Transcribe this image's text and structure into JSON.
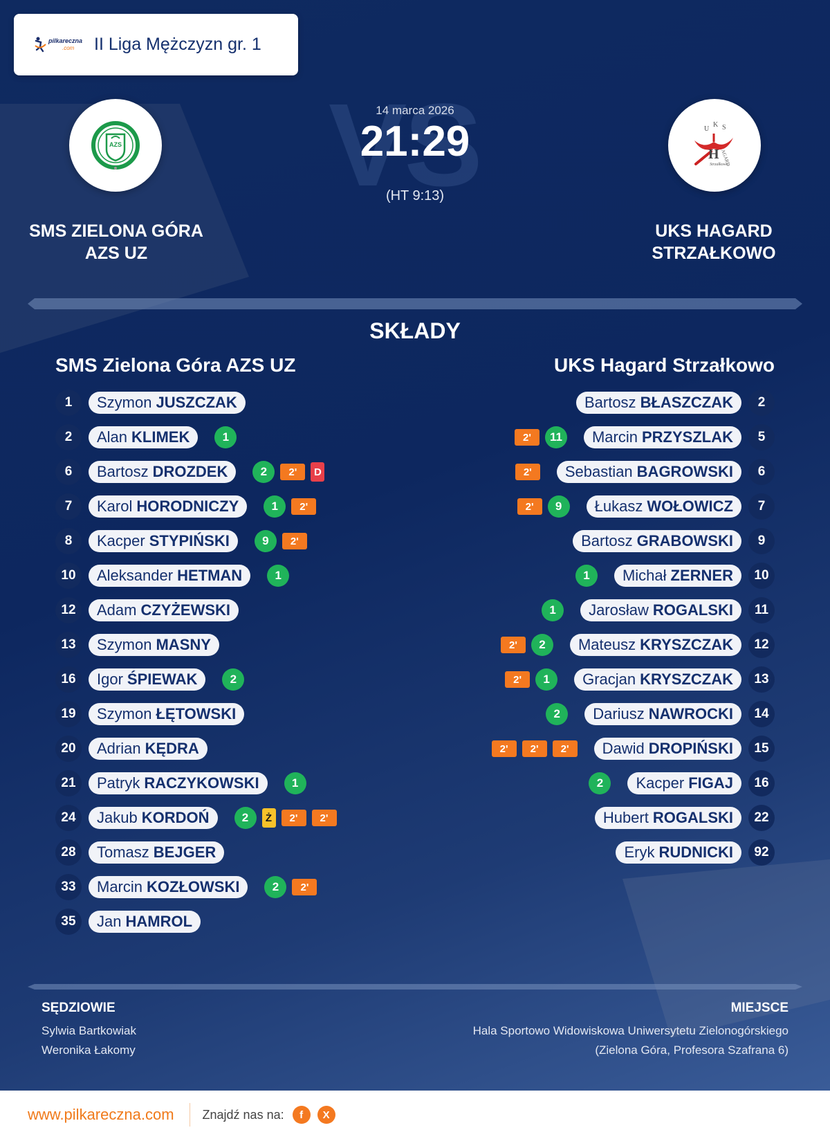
{
  "header": {
    "league_logo_text": "pilkareczna",
    "league_logo_suffix": ".com",
    "league_name": "II Liga Mężczyzn gr. 1"
  },
  "match": {
    "date": "14 marca 2026",
    "score": "21:29",
    "halftime": "(HT 9:13)",
    "vs_watermark": "VS"
  },
  "home_team": {
    "title_line1": "SMS ZIELONA GÓRA",
    "title_line2": "AZS UZ",
    "roster_name": "SMS Zielona Góra AZS UZ",
    "logo_text": "AZS"
  },
  "away_team": {
    "title_line1": "UKS HAGARD",
    "title_line2": "STRZAŁKOWO",
    "roster_name": "UKS Hagard Strzałkowo",
    "logo_text": "UKS H"
  },
  "section_title": "SKŁADY",
  "home_players": [
    {
      "number": "1",
      "first": "Szymon",
      "last": "JUSZCZAK",
      "goals": null,
      "penalties": [],
      "yellow": false,
      "red": false
    },
    {
      "number": "2",
      "first": "Alan",
      "last": "KLIMEK",
      "goals": "1",
      "penalties": [],
      "yellow": false,
      "red": false
    },
    {
      "number": "6",
      "first": "Bartosz",
      "last": "DROZDEK",
      "goals": "2",
      "penalties": [
        "2'"
      ],
      "yellow": false,
      "red": true
    },
    {
      "number": "7",
      "first": "Karol",
      "last": "HORODNICZY",
      "goals": "1",
      "penalties": [
        "2'"
      ],
      "yellow": false,
      "red": false
    },
    {
      "number": "8",
      "first": "Kacper",
      "last": "STYPIŃSKI",
      "goals": "9",
      "penalties": [
        "2'"
      ],
      "yellow": false,
      "red": false
    },
    {
      "number": "10",
      "first": "Aleksander",
      "last": "HETMAN",
      "goals": "1",
      "penalties": [],
      "yellow": false,
      "red": false
    },
    {
      "number": "12",
      "first": "Adam",
      "last": "CZYŻEWSKI",
      "goals": null,
      "penalties": [],
      "yellow": false,
      "red": false
    },
    {
      "number": "13",
      "first": "Szymon",
      "last": "MASNY",
      "goals": null,
      "penalties": [],
      "yellow": false,
      "red": false
    },
    {
      "number": "16",
      "first": "Igor",
      "last": "ŚPIEWAK",
      "goals": "2",
      "penalties": [],
      "yellow": false,
      "red": false
    },
    {
      "number": "19",
      "first": "Szymon",
      "last": "ŁĘTOWSKI",
      "goals": null,
      "penalties": [],
      "yellow": false,
      "red": false
    },
    {
      "number": "20",
      "first": "Adrian",
      "last": "KĘDRA",
      "goals": null,
      "penalties": [],
      "yellow": false,
      "red": false
    },
    {
      "number": "21",
      "first": "Patryk",
      "last": "RACZYKOWSKI",
      "goals": "1",
      "penalties": [],
      "yellow": false,
      "red": false
    },
    {
      "number": "24",
      "first": "Jakub",
      "last": "KORDOŃ",
      "goals": "2",
      "penalties": [
        "2'",
        "2'"
      ],
      "yellow": true,
      "red": false
    },
    {
      "number": "28",
      "first": "Tomasz",
      "last": "BEJGER",
      "goals": null,
      "penalties": [],
      "yellow": false,
      "red": false
    },
    {
      "number": "33",
      "first": "Marcin",
      "last": "KOZŁOWSKI",
      "goals": "2",
      "penalties": [
        "2'"
      ],
      "yellow": false,
      "red": false
    },
    {
      "number": "35",
      "first": "Jan",
      "last": "HAMROL",
      "goals": null,
      "penalties": [],
      "yellow": false,
      "red": false
    }
  ],
  "away_players": [
    {
      "number": "2",
      "first": "Bartosz",
      "last": "BŁASZCZAK",
      "goals": null,
      "penalties": [],
      "yellow": false,
      "red": false
    },
    {
      "number": "5",
      "first": "Marcin",
      "last": "PRZYSZLAK",
      "goals": "11",
      "penalties": [
        "2'"
      ],
      "yellow": false,
      "red": false
    },
    {
      "number": "6",
      "first": "Sebastian",
      "last": "BAGROWSKI",
      "goals": null,
      "penalties": [
        "2'"
      ],
      "yellow": false,
      "red": false
    },
    {
      "number": "7",
      "first": "Łukasz",
      "last": "WOŁOWICZ",
      "goals": "9",
      "penalties": [
        "2'"
      ],
      "yellow": false,
      "red": false
    },
    {
      "number": "9",
      "first": "Bartosz",
      "last": "GRABOWSKI",
      "goals": null,
      "penalties": [],
      "yellow": false,
      "red": false
    },
    {
      "number": "10",
      "first": "Michał",
      "last": "ZERNER",
      "goals": "1",
      "penalties": [],
      "yellow": false,
      "red": false
    },
    {
      "number": "11",
      "first": "Jarosław",
      "last": "ROGALSKI",
      "goals": "1",
      "penalties": [],
      "yellow": false,
      "red": false
    },
    {
      "number": "12",
      "first": "Mateusz",
      "last": "KRYSZCZAK",
      "goals": "2",
      "penalties": [
        "2'"
      ],
      "yellow": false,
      "red": false
    },
    {
      "number": "13",
      "first": "Gracjan",
      "last": "KRYSZCZAK",
      "goals": "1",
      "penalties": [
        "2'"
      ],
      "yellow": false,
      "red": false
    },
    {
      "number": "14",
      "first": "Dariusz",
      "last": "NAWROCKI",
      "goals": "2",
      "penalties": [],
      "yellow": false,
      "red": false
    },
    {
      "number": "15",
      "first": "Dawid",
      "last": "DROPIŃSKI",
      "goals": null,
      "penalties": [
        "2'",
        "2'",
        "2'"
      ],
      "yellow": false,
      "red": false
    },
    {
      "number": "16",
      "first": "Kacper",
      "last": "FIGAJ",
      "goals": "2",
      "penalties": [],
      "yellow": false,
      "red": false
    },
    {
      "number": "22",
      "first": "Hubert",
      "last": "ROGALSKI",
      "goals": null,
      "penalties": [],
      "yellow": false,
      "red": false
    },
    {
      "number": "92",
      "first": "Eryk",
      "last": "RUDNICKI",
      "goals": null,
      "penalties": [],
      "yellow": false,
      "red": false
    }
  ],
  "card_labels": {
    "yellow": "Ż",
    "red": "D"
  },
  "referees": {
    "title": "SĘDZIOWIE",
    "names": [
      "Sylwia Bartkowiak",
      "Weronika Łakomy"
    ]
  },
  "venue": {
    "title": "MIEJSCE",
    "line1": "Hala Sportowo Widowiskowa Uniwersytetu Zielonogórskiego",
    "line2": "(Zielona Góra, Profesora Szafrana 6)"
  },
  "footer": {
    "url": "www.pilkareczna.com",
    "find_us": "Znajdź nas na:",
    "social": [
      {
        "name": "facebook",
        "glyph": "f"
      },
      {
        "name": "x",
        "glyph": "X"
      }
    ]
  },
  "colors": {
    "background": "#0d275f",
    "accent_orange": "#f47920",
    "goal_green": "#20b35a",
    "red_card": "#e8404a",
    "yellow_card": "#f8c22a",
    "pill_bg": "#f1f3f8",
    "text_navy": "#15306e"
  }
}
